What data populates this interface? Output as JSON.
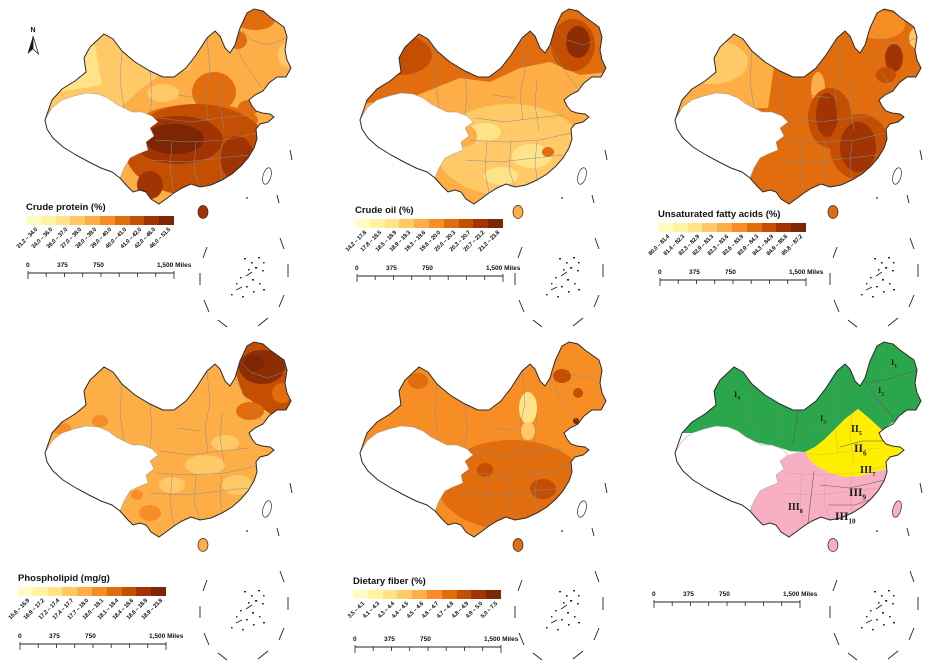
{
  "north": {
    "label": "N"
  },
  "scalebar": {
    "t0": "0",
    "t1": "375",
    "t2": "750",
    "t3": "1,500 Miles"
  },
  "colors": {
    "ramp": [
      "#FFFBC4",
      "#FFF3A2",
      "#FEE388",
      "#FEC966",
      "#FDAE47",
      "#F78D25",
      "#E26D0E",
      "#C44F02",
      "#A03403",
      "#7C2604"
    ],
    "region_green": "#2BA64C",
    "region_yellow": "#FFEE00",
    "region_pink": "#F8AFC4",
    "no_data": "#FFFFFF"
  },
  "panels": [
    {
      "id": "crude-protein",
      "title": "Crude protein (%)",
      "classes": [
        "31.2 – 34.0",
        "34.0 – 36.0",
        "36.0 – 37.0",
        "37.0 – 38.0",
        "38.0 – 39.0",
        "39.0 – 40.0",
        "40.0 – 41.0",
        "41.0 – 42.0",
        "42.0 – 46.0",
        "46.0 – 51.5"
      ]
    },
    {
      "id": "crude-oil",
      "title": "Crude oil (%)",
      "classes": [
        "14.2 – 17.8",
        "17.8 – 18.5",
        "18.5 – 18.9",
        "18.9 – 19.3",
        "19.3 – 19.6",
        "19.6 – 20.0",
        "20.0 – 20.3",
        "20.3 – 20.7",
        "20.7 – 21.2",
        "21.2 – 23.8"
      ]
    },
    {
      "id": "unsaturated-fatty-acids",
      "title": "Unsaturated fatty acids (%)",
      "classes": [
        "80.0 – 81.4",
        "81.4 – 82.3",
        "82.3 – 82.9",
        "82.9 – 83.3",
        "83.3 – 83.6",
        "83.6 – 83.9",
        "83.9 – 84.3",
        "84.3 – 84.9",
        "84.9 – 85.8",
        "85.8 – 87.2"
      ]
    },
    {
      "id": "phospholipid",
      "title": "Phospholipid (mg/g)",
      "classes": [
        "15.6 – 16.9",
        "16.9 – 17.2",
        "17.2 – 17.4",
        "17.4 – 17.7",
        "17.7 – 18.0",
        "18.0 – 18.1",
        "18.1 – 18.4",
        "18.4 – 18.6",
        "18.6 – 18.9",
        "18.9 – 23.8"
      ]
    },
    {
      "id": "dietary-fiber",
      "title": "Dietary fiber (%)",
      "classes": [
        "3.5 – 4.1",
        "4.1 – 4.3",
        "4.3 – 4.4",
        "4.4 – 4.5",
        "4.5 – 4.6",
        "4.6 – 4.7",
        "4.7 – 4.8",
        "4.8 – 4.9",
        "4.9 – 5.0",
        "5.0 – 7.5"
      ]
    },
    {
      "id": "production-regions",
      "title": "",
      "regions": [
        {
          "roman": "I",
          "sub": "1"
        },
        {
          "roman": "I",
          "sub": "2"
        },
        {
          "roman": "I",
          "sub": "3"
        },
        {
          "roman": "I",
          "sub": "4"
        },
        {
          "roman": "II",
          "sub": "5"
        },
        {
          "roman": "II",
          "sub": "6"
        },
        {
          "roman": "III",
          "sub": "7"
        },
        {
          "roman": "III",
          "sub": "8"
        },
        {
          "roman": "III",
          "sub": "9"
        },
        {
          "roman": "III",
          "sub": "10"
        }
      ]
    }
  ],
  "chart_data": [
    {
      "type": "choropleth",
      "title": "Crude protein (%)",
      "unit": "%",
      "n_classes": 10,
      "class_breaks": [
        31.2,
        34.0,
        36.0,
        37.0,
        38.0,
        39.0,
        40.0,
        41.0,
        42.0,
        46.0,
        51.5
      ],
      "color_ramp": "yellow-orange-brown (light = low, dark = high)",
      "no_data_region": "Tibetan Plateau shown white",
      "spatial_pattern": "low values in Xinjiang and the north, highest values (42.0–51.5) in south-central and southwestern China",
      "scale_bar_miles": [
        0,
        375,
        750,
        1500
      ]
    },
    {
      "type": "choropleth",
      "title": "Crude oil (%)",
      "unit": "%",
      "n_classes": 10,
      "class_breaks": [
        14.2,
        17.8,
        18.5,
        18.9,
        19.3,
        19.6,
        20.0,
        20.3,
        20.7,
        21.2,
        23.8
      ],
      "color_ramp": "yellow-orange-brown (light = low, dark = high)",
      "no_data_region": "Tibetan Plateau shown white",
      "spatial_pattern": "highest in northern Xinjiang and the northeast, lowest across southern China",
      "scale_bar_miles": [
        0,
        375,
        750,
        1500
      ]
    },
    {
      "type": "choropleth",
      "title": "Unsaturated fatty acids (%)",
      "unit": "%",
      "n_classes": 10,
      "class_breaks": [
        80.0,
        81.4,
        82.3,
        82.9,
        83.3,
        83.6,
        83.9,
        84.3,
        84.9,
        85.8,
        87.2
      ],
      "color_ramp": "yellow-orange-brown (light = low, dark = high)",
      "no_data_region": "Tibetan Plateau shown white",
      "spatial_pattern": "highest in central-eastern China, lighter in Xinjiang and the far northeast tip",
      "scale_bar_miles": [
        0,
        375,
        750,
        1500
      ]
    },
    {
      "type": "choropleth",
      "title": "Phospholipid (mg/g)",
      "unit": "mg/g",
      "n_classes": 10,
      "class_breaks": [
        15.6,
        16.9,
        17.2,
        17.4,
        17.7,
        18.0,
        18.1,
        18.4,
        18.6,
        18.9,
        23.8
      ],
      "color_ramp": "yellow-orange-brown (light = low, dark = high)",
      "no_data_region": "Tibetan Plateau shown white",
      "spatial_pattern": "markedly highest in the northeast (Heilongjiang), fairly uniform mid values elsewhere",
      "scale_bar_miles": [
        0,
        375,
        750,
        1500
      ]
    },
    {
      "type": "choropleth",
      "title": "Dietary fiber (%)",
      "unit": "%",
      "n_classes": 10,
      "class_breaks": [
        3.5,
        4.1,
        4.3,
        4.4,
        4.5,
        4.6,
        4.7,
        4.8,
        4.9,
        5.0,
        7.5
      ],
      "color_ramp": "yellow-orange-brown (light = low, dark = high)",
      "no_data_region": "Tibetan Plateau shown white",
      "spatial_pattern": "higher in southern China, lower in the north, light patch around Hebei",
      "scale_bar_miles": [
        0,
        375,
        750,
        1500
      ]
    },
    {
      "type": "region-map",
      "title": "Production regions",
      "zones": [
        {
          "zone": "I1",
          "group": "I",
          "color": "#2BA64C"
        },
        {
          "zone": "I2",
          "group": "I",
          "color": "#2BA64C"
        },
        {
          "zone": "I3",
          "group": "I",
          "color": "#2BA64C"
        },
        {
          "zone": "I4",
          "group": "I",
          "color": "#2BA64C"
        },
        {
          "zone": "II5",
          "group": "II",
          "color": "#FFEE00"
        },
        {
          "zone": "II6",
          "group": "II",
          "color": "#FFEE00"
        },
        {
          "zone": "III7",
          "group": "III",
          "color": "#F8AFC4"
        },
        {
          "zone": "III8",
          "group": "III",
          "color": "#F8AFC4"
        },
        {
          "zone": "III9",
          "group": "III",
          "color": "#F8AFC4"
        },
        {
          "zone": "III10",
          "group": "III",
          "color": "#F8AFC4"
        }
      ],
      "no_data_region": "Tibetan Plateau shown white",
      "scale_bar_miles": [
        0,
        375,
        750,
        1500
      ]
    }
  ]
}
